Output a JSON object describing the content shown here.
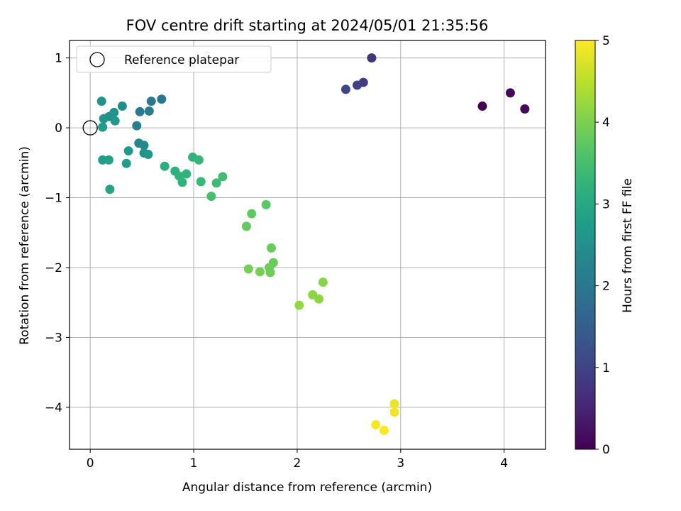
{
  "chart_data": {
    "type": "scatter",
    "title": "FOV centre drift starting at 2024/05/01 21:35:56",
    "xlabel": "Angular distance from reference (arcmin)",
    "ylabel": "Rotation from reference (arcmin)",
    "xlim": [
      -0.2,
      4.4
    ],
    "ylim": [
      -4.6,
      1.25
    ],
    "xticks": [
      0,
      1,
      2,
      3,
      4
    ],
    "yticks": [
      -4,
      -3,
      -2,
      -1,
      0,
      1
    ],
    "grid": true,
    "legend": {
      "placement": "upper-left",
      "entries": [
        "Reference platepar"
      ]
    },
    "reference_point": {
      "x": 0,
      "y": 0
    },
    "colorbar": {
      "label": "Hours from first FF file",
      "range": [
        0,
        5
      ],
      "ticks": [
        0,
        1,
        2,
        3,
        4,
        5
      ],
      "colormap": "viridis"
    },
    "points": [
      {
        "x": 3.79,
        "y": 0.31,
        "c": 0.0
      },
      {
        "x": 4.06,
        "y": 0.5,
        "c": 0.05
      },
      {
        "x": 4.2,
        "y": 0.27,
        "c": 0.1
      },
      {
        "x": 2.72,
        "y": 1.0,
        "c": 0.75
      },
      {
        "x": 2.64,
        "y": 0.65,
        "c": 0.85
      },
      {
        "x": 2.58,
        "y": 0.61,
        "c": 0.95
      },
      {
        "x": 2.47,
        "y": 0.55,
        "c": 1.05
      },
      {
        "x": 0.69,
        "y": 0.41,
        "c": 1.95
      },
      {
        "x": 0.59,
        "y": 0.38,
        "c": 2.0
      },
      {
        "x": 0.48,
        "y": 0.23,
        "c": 2.05
      },
      {
        "x": 0.57,
        "y": 0.24,
        "c": 2.1
      },
      {
        "x": 0.45,
        "y": 0.03,
        "c": 2.15
      },
      {
        "x": 0.31,
        "y": 0.31,
        "c": 2.45
      },
      {
        "x": 0.23,
        "y": 0.22,
        "c": 2.5
      },
      {
        "x": 0.18,
        "y": 0.16,
        "c": 2.55
      },
      {
        "x": 0.13,
        "y": 0.13,
        "c": 2.6
      },
      {
        "x": 0.11,
        "y": 0.38,
        "c": 2.55
      },
      {
        "x": 0.24,
        "y": 0.1,
        "c": 2.65
      },
      {
        "x": 0.12,
        "y": 0.01,
        "c": 2.7
      },
      {
        "x": 0.47,
        "y": -0.22,
        "c": 2.3
      },
      {
        "x": 0.52,
        "y": -0.25,
        "c": 2.4
      },
      {
        "x": 0.52,
        "y": -0.36,
        "c": 2.55
      },
      {
        "x": 0.56,
        "y": -0.38,
        "c": 2.65
      },
      {
        "x": 0.37,
        "y": -0.33,
        "c": 2.7
      },
      {
        "x": 0.35,
        "y": -0.51,
        "c": 2.75
      },
      {
        "x": 0.12,
        "y": -0.46,
        "c": 2.8
      },
      {
        "x": 0.18,
        "y": -0.46,
        "c": 2.85
      },
      {
        "x": 0.19,
        "y": -0.88,
        "c": 2.9
      },
      {
        "x": 0.72,
        "y": -0.55,
        "c": 3.1
      },
      {
        "x": 0.82,
        "y": -0.62,
        "c": 3.15
      },
      {
        "x": 0.86,
        "y": -0.69,
        "c": 3.2
      },
      {
        "x": 0.93,
        "y": -0.66,
        "c": 3.2
      },
      {
        "x": 0.89,
        "y": -0.78,
        "c": 3.25
      },
      {
        "x": 0.99,
        "y": -0.42,
        "c": 3.25
      },
      {
        "x": 1.05,
        "y": -0.46,
        "c": 3.3
      },
      {
        "x": 1.07,
        "y": -0.77,
        "c": 3.35
      },
      {
        "x": 1.22,
        "y": -0.79,
        "c": 3.4
      },
      {
        "x": 1.28,
        "y": -0.7,
        "c": 3.45
      },
      {
        "x": 1.17,
        "y": -0.98,
        "c": 3.5
      },
      {
        "x": 1.7,
        "y": -1.1,
        "c": 3.7
      },
      {
        "x": 1.56,
        "y": -1.23,
        "c": 3.75
      },
      {
        "x": 1.51,
        "y": -1.41,
        "c": 3.8
      },
      {
        "x": 1.75,
        "y": -1.72,
        "c": 3.85
      },
      {
        "x": 1.77,
        "y": -1.93,
        "c": 3.85
      },
      {
        "x": 1.73,
        "y": -2.0,
        "c": 3.9
      },
      {
        "x": 1.74,
        "y": -2.07,
        "c": 3.9
      },
      {
        "x": 1.64,
        "y": -2.06,
        "c": 3.95
      },
      {
        "x": 1.53,
        "y": -2.02,
        "c": 3.95
      },
      {
        "x": 2.25,
        "y": -2.21,
        "c": 4.1
      },
      {
        "x": 2.15,
        "y": -2.39,
        "c": 4.15
      },
      {
        "x": 2.21,
        "y": -2.45,
        "c": 4.15
      },
      {
        "x": 2.02,
        "y": -2.54,
        "c": 4.2
      },
      {
        "x": 2.94,
        "y": -3.95,
        "c": 4.85
      },
      {
        "x": 2.94,
        "y": -4.07,
        "c": 4.9
      },
      {
        "x": 2.76,
        "y": -4.25,
        "c": 4.95
      },
      {
        "x": 2.84,
        "y": -4.33,
        "c": 5.0
      }
    ]
  }
}
